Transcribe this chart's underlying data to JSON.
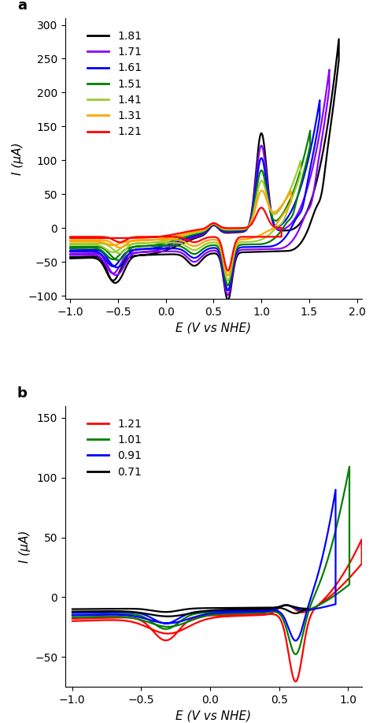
{
  "panel_a": {
    "series": [
      {
        "label": "1.81",
        "color": "#000000",
        "vertex": 1.81
      },
      {
        "label": "1.71",
        "color": "#8B00FF",
        "vertex": 1.71
      },
      {
        "label": "1.61",
        "color": "#0000FF",
        "vertex": 1.61
      },
      {
        "label": "1.51",
        "color": "#008000",
        "vertex": 1.51
      },
      {
        "label": "1.41",
        "color": "#9ACD32",
        "vertex": 1.41
      },
      {
        "label": "1.31",
        "color": "#FFA500",
        "vertex": 1.31
      },
      {
        "label": "1.21",
        "color": "#FF0000",
        "vertex": 1.21
      }
    ],
    "xlim": [
      -1.05,
      2.05
    ],
    "ylim": [
      -105,
      310
    ],
    "yticks": [
      -100,
      -50,
      0,
      50,
      100,
      150,
      200,
      250,
      300
    ],
    "xticks": [
      -1.0,
      -0.5,
      0.0,
      0.5,
      1.0,
      1.5,
      2.0
    ],
    "xlabel": "E (V vs NHE)",
    "ylabel": "I (μA)",
    "label": "a"
  },
  "panel_b": {
    "series": [
      {
        "label": "1.21",
        "color": "#FF0000",
        "vertex": 1.21
      },
      {
        "label": "1.01",
        "color": "#008000",
        "vertex": 1.01
      },
      {
        "label": "0.91",
        "color": "#0000FF",
        "vertex": 0.91
      },
      {
        "label": "0.71",
        "color": "#000000",
        "vertex": 0.71
      }
    ],
    "xlim": [
      -1.05,
      1.1
    ],
    "ylim": [
      -75,
      160
    ],
    "yticks": [
      -50,
      0,
      50,
      100,
      150
    ],
    "xticks": [
      -1.0,
      -0.5,
      0.0,
      0.5,
      1.0
    ],
    "xlabel": "E (V vs NHE)",
    "ylabel": "I (μA)",
    "label": "b"
  }
}
